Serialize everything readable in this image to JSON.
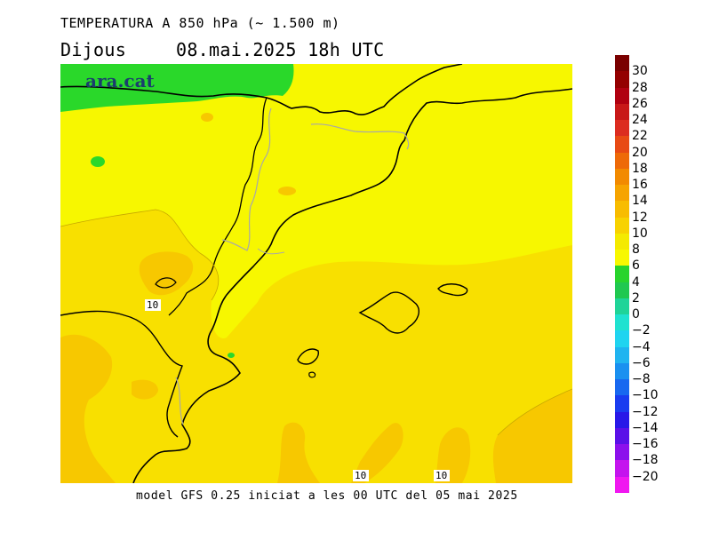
{
  "header": {
    "title": "TEMPERATURA A 850 hPa (~ 1.500 m)",
    "day": "Dijous",
    "datetime": "08.mai.2025 18h UTC"
  },
  "map": {
    "brand": "ara.cat",
    "contour_labels": [
      {
        "text": "10",
        "desc": "west contour"
      },
      {
        "text": "10",
        "desc": "south contour A"
      },
      {
        "text": "10",
        "desc": "south contour B"
      }
    ],
    "colors": {
      "band_6_8": "#f7f700",
      "band_8_10": "#f8e000",
      "band_10_12": "#f7c800",
      "band_4_6": "#2ad82a",
      "coastline": "#000000",
      "border": "#a0a0a0"
    }
  },
  "footer": {
    "model_text": "model GFS 0.25 iniciat a les 00 UTC del 05 mai 2025"
  },
  "legend": {
    "ticks": [
      "30",
      "28",
      "26",
      "24",
      "22",
      "20",
      "18",
      "16",
      "14",
      "12",
      "10",
      "8",
      "6",
      "4",
      "2",
      "0",
      "−2",
      "−4",
      "−6",
      "−8",
      "−10",
      "−12",
      "−14",
      "−16",
      "−18",
      "−20"
    ],
    "colors": [
      "#7a0000",
      "#940000",
      "#b00010",
      "#c81818",
      "#dc2c20",
      "#e84a14",
      "#ee6a08",
      "#f28a00",
      "#f6a400",
      "#f8bc00",
      "#f8d200",
      "#f4ea00",
      "#f8f800",
      "#28d42c",
      "#20c850",
      "#20d498",
      "#20e2d0",
      "#20d4f0",
      "#20b4f0",
      "#1a90f0",
      "#1868f0",
      "#1a3cf0",
      "#2818e8",
      "#5a10e8",
      "#8c10ec",
      "#c414ee",
      "#f018f0"
    ]
  }
}
